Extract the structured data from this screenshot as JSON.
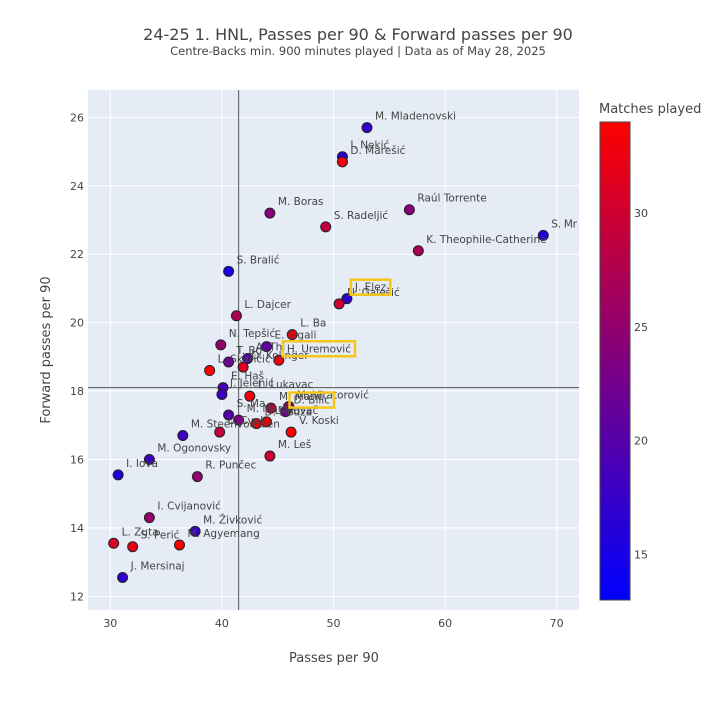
{
  "chart_data": {
    "type": "scatter",
    "title": "24-25 1. HNL, Passes per 90 & Forward passes per 90",
    "subtitle": "Centre-Backs min. 900 minutes played | Data as of May 28, 2025",
    "xlabel": "Passes per 90",
    "ylabel": "Forward passes per 90",
    "xlim": [
      28,
      72
    ],
    "ylim": [
      11.6,
      26.8
    ],
    "x_ticks": [
      30,
      40,
      50,
      60,
      70
    ],
    "y_ticks": [
      12,
      14,
      16,
      18,
      20,
      22,
      24,
      26
    ],
    "grid": true,
    "reference_lines": {
      "x": 41.5,
      "y": 18.1
    },
    "colorbar": {
      "title": "Matches played",
      "min": 13,
      "max": 34,
      "ticks": [
        15,
        20,
        25,
        30
      ],
      "colorscale": [
        "#0000ff",
        "#ff0000"
      ]
    },
    "points": [
      {
        "label": "M. Mladenovski",
        "x": 53.0,
        "y": 25.7,
        "matches": 17
      },
      {
        "label": "I. Nekić",
        "x": 50.8,
        "y": 24.85,
        "matches": 16
      },
      {
        "label": "D. Marešić",
        "x": 50.8,
        "y": 24.7,
        "matches": 33
      },
      {
        "label": "M. Boras",
        "x": 44.3,
        "y": 23.2,
        "matches": 24
      },
      {
        "label": "Raúl Torrente",
        "x": 56.8,
        "y": 23.3,
        "matches": 24
      },
      {
        "label": "S. Radeljić",
        "x": 49.3,
        "y": 22.8,
        "matches": 29
      },
      {
        "label": "S. Mr",
        "x": 68.8,
        "y": 22.55,
        "matches": 16
      },
      {
        "label": "K. Theophile-Catherine",
        "x": 57.6,
        "y": 22.1,
        "matches": 27
      },
      {
        "label": "S. Bralić",
        "x": 40.6,
        "y": 21.5,
        "matches": 15
      },
      {
        "label": "J. Elez",
        "x": 51.2,
        "y": 20.7,
        "matches": 17
      },
      {
        "label": "N. Galešić",
        "x": 50.5,
        "y": 20.55,
        "matches": 30
      },
      {
        "label": "L. Dajcer",
        "x": 41.3,
        "y": 20.2,
        "matches": 27
      },
      {
        "label": "L. Ba",
        "x": 46.3,
        "y": 19.65,
        "matches": 33
      },
      {
        "label": "N. Tepšić",
        "x": 39.9,
        "y": 19.35,
        "matches": 25
      },
      {
        "label": "H. Uremović",
        "x": 45.1,
        "y": 18.9,
        "matches": 33
      },
      {
        "label": "A. Thi",
        "x": 42.3,
        "y": 18.95,
        "matches": 20
      },
      {
        "label": "E. Sigali",
        "x": 44.0,
        "y": 19.3,
        "matches": 21
      },
      {
        "label": "T. Bo",
        "x": 40.6,
        "y": 18.85,
        "matches": 22
      },
      {
        "label": "D. Kolinger",
        "x": 41.9,
        "y": 18.7,
        "matches": 31
      },
      {
        "label": "L. Skaričić",
        "x": 38.9,
        "y": 18.6,
        "matches": 34
      },
      {
        "label": "E. Haš",
        "x": 40.1,
        "y": 18.1,
        "matches": 19
      },
      {
        "label": "J. Jelenić",
        "x": 40.0,
        "y": 17.9,
        "matches": 18
      },
      {
        "label": "S. Ma",
        "x": 40.6,
        "y": 17.3,
        "matches": 20
      },
      {
        "label": "L. Lukavac",
        "x": 42.5,
        "y": 17.85,
        "matches": 33
      },
      {
        "label": "M. Marić",
        "x": 41.5,
        "y": 17.15,
        "matches": 23
      },
      {
        "label": "D. Hodža",
        "x": 43.1,
        "y": 17.05,
        "matches": 33
      },
      {
        "label": "L. Kovač",
        "x": 44.0,
        "y": 17.1,
        "matches": 33
      },
      {
        "label": "M. Matić",
        "x": 44.4,
        "y": 17.5,
        "matches": 29
      },
      {
        "label": "D. Bilić",
        "x": 45.7,
        "y": 17.4,
        "matches": 22
      },
      {
        "label": "M. Vitatorović",
        "x": 46.0,
        "y": 17.55,
        "matches": 25
      },
      {
        "label": "V. Koski",
        "x": 46.2,
        "y": 16.8,
        "matches": 34
      },
      {
        "label": "L. Cvek",
        "x": 39.8,
        "y": 16.8,
        "matches": 29
      },
      {
        "label": "M. Leš",
        "x": 44.3,
        "y": 16.1,
        "matches": 30
      },
      {
        "label": "M. Steenvoorden",
        "x": 36.5,
        "y": 16.7,
        "matches": 18
      },
      {
        "label": "I. Iova",
        "x": 30.7,
        "y": 15.55,
        "matches": 16
      },
      {
        "label": "M. Ogonovsky",
        "x": 33.5,
        "y": 16.0,
        "matches": 18
      },
      {
        "label": "R. Punčec",
        "x": 37.8,
        "y": 15.5,
        "matches": 25
      },
      {
        "label": "I. Cvijanović",
        "x": 33.5,
        "y": 14.3,
        "matches": 25
      },
      {
        "label": "M. Živković",
        "x": 37.6,
        "y": 13.9,
        "matches": 18
      },
      {
        "label": "M. Agyemang",
        "x": 36.2,
        "y": 13.5,
        "matches": 34
      },
      {
        "label": "L. Zuta",
        "x": 30.3,
        "y": 13.55,
        "matches": 31
      },
      {
        "label": "S. Perić",
        "x": 32.0,
        "y": 13.45,
        "matches": 32
      },
      {
        "label": "J. Mersinaj",
        "x": 31.1,
        "y": 12.55,
        "matches": 17
      }
    ],
    "highlighted": [
      "J. Elez",
      "H. Uremović",
      "D. Bilić"
    ]
  }
}
